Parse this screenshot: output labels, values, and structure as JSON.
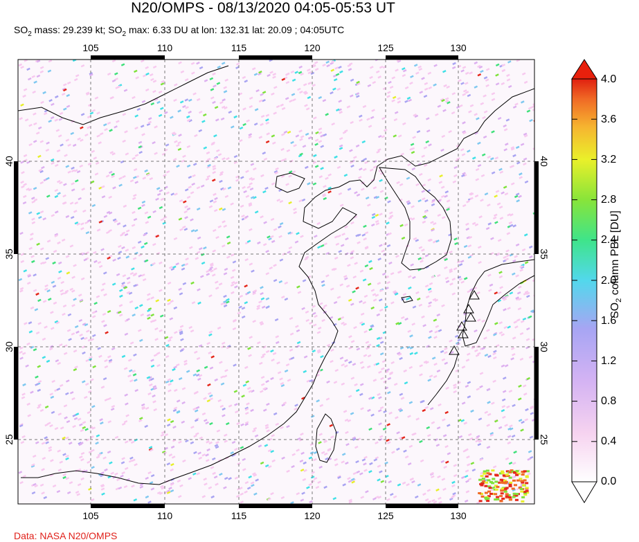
{
  "title": "N20/OMPS - 08/13/2020 04:05-05:53 UT",
  "subtitle": {
    "mass_label": "SO",
    "mass_sub": "2",
    "mass_text": " mass: 29.239 kt; SO",
    "max_sub": "2",
    "max_text": " max: 6.33 DU at lon: 132.31 lat: 20.09 ; 04:05UTC"
  },
  "credit": "Data: NASA N20/OMPS",
  "map": {
    "lon_ticks": [
      "105",
      "110",
      "115",
      "120",
      "125",
      "130"
    ],
    "lat_ticks": [
      "40",
      "35",
      "30",
      "25"
    ]
  },
  "colorbar": {
    "title_prefix": "SO",
    "title_sub": "2",
    "title_suffix": " column PBL [DU]",
    "ticks": [
      "4.0",
      "3.6",
      "3.2",
      "2.8",
      "2.4",
      "2.0",
      "1.6",
      "1.2",
      "0.8",
      "0.4",
      "0.0"
    ],
    "colors": [
      "#fff8f8",
      "#f7c9ef",
      "#ddb0f0",
      "#a9a4f2",
      "#7fc8f0",
      "#3fe0e6",
      "#3fe07a",
      "#7ee23a",
      "#e7ef2a",
      "#f5b42a",
      "#f06a25",
      "#e4261a"
    ]
  }
}
